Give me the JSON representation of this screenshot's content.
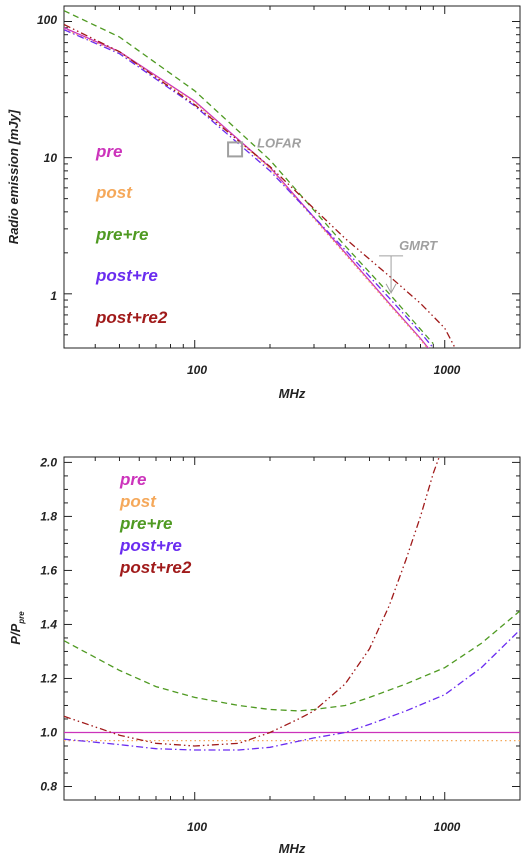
{
  "colors": {
    "pre": "#cc33bb",
    "post": "#f5a85a",
    "pre+re": "#4f9a22",
    "post+re": "#6a2cf0",
    "post+re2": "#a01a1a",
    "observation": "#a0a0a0",
    "axis": "#222222"
  },
  "chart_data": [
    {
      "type": "line",
      "xlabel": "MHz",
      "ylabel": "Radio emission [mJy]",
      "xscale": "log",
      "yscale": "log",
      "xlim": [
        30,
        2000
      ],
      "ylim": [
        0.4,
        130
      ],
      "x_tick_labels": [
        "100",
        "1000"
      ],
      "y_tick_labels": [
        "1",
        "10",
        "100"
      ],
      "legend": [
        "pre",
        "post",
        "pre+re",
        "post+re",
        "post+re2"
      ],
      "legend_position": "left",
      "series": [
        {
          "name": "pre",
          "style": "solid",
          "x": [
            30,
            50,
            100,
            200,
            400,
            600,
            800,
            900
          ],
          "y": [
            90,
            60,
            26,
            8.5,
            2.0,
            0.85,
            0.47,
            0.36
          ]
        },
        {
          "name": "post",
          "style": "dotted",
          "x": [
            30,
            50,
            100,
            200,
            400,
            600,
            800,
            900
          ],
          "y": [
            88,
            59,
            25.5,
            8.3,
            1.95,
            0.83,
            0.46,
            0.35
          ]
        },
        {
          "name": "pre+re",
          "style": "dashed",
          "x": [
            30,
            50,
            100,
            200,
            400,
            600,
            800,
            900
          ],
          "y": [
            120,
            77,
            31,
            9.6,
            2.25,
            1.0,
            0.55,
            0.43
          ]
        },
        {
          "name": "post+re",
          "style": "dash-dot",
          "x": [
            30,
            50,
            100,
            200,
            400,
            600,
            800,
            900
          ],
          "y": [
            87,
            58,
            24,
            8.0,
            2.1,
            0.93,
            0.52,
            0.4
          ]
        },
        {
          "name": "post+re2",
          "style": "dash-dot-dot",
          "x": [
            30,
            50,
            100,
            200,
            400,
            600,
            800,
            1000,
            1100
          ],
          "y": [
            95,
            60,
            24.5,
            8.6,
            2.55,
            1.35,
            0.85,
            0.56,
            0.4
          ]
        }
      ],
      "annotations": [
        {
          "label": "LOFAR",
          "type": "data-point",
          "x": 145,
          "y": 11.5
        },
        {
          "label": "GMRT",
          "type": "upper-limit",
          "x": 610,
          "y": 1.9
        }
      ]
    },
    {
      "type": "line",
      "xlabel": "MHz",
      "ylabel": "P/P",
      "ylabel_sub": "pre",
      "xscale": "log",
      "yscale": "linear",
      "xlim": [
        30,
        2000
      ],
      "ylim": [
        0.75,
        2.02
      ],
      "x_tick_labels": [
        "100",
        "1000"
      ],
      "y_tick_labels": [
        "0.8",
        "1.0",
        "1.2",
        "1.4",
        "1.6",
        "1.8",
        "2.0"
      ],
      "y_ticks": [
        0.8,
        1.0,
        1.2,
        1.4,
        1.6,
        1.8,
        2.0
      ],
      "legend": [
        "pre",
        "post",
        "pre+re",
        "post+re",
        "post+re2"
      ],
      "legend_position": "top-left",
      "series": [
        {
          "name": "pre",
          "style": "solid",
          "x": [
            30,
            2000
          ],
          "y": [
            1.0,
            1.0
          ]
        },
        {
          "name": "post",
          "style": "dotted",
          "x": [
            30,
            2000
          ],
          "y": [
            0.97,
            0.97
          ]
        },
        {
          "name": "pre+re",
          "style": "dashed",
          "x": [
            30,
            50,
            70,
            100,
            150,
            200,
            260,
            300,
            400,
            500,
            700,
            1000,
            1400,
            2000
          ],
          "y": [
            1.34,
            1.23,
            1.17,
            1.13,
            1.1,
            1.085,
            1.08,
            1.085,
            1.1,
            1.13,
            1.18,
            1.24,
            1.33,
            1.45
          ]
        },
        {
          "name": "post+re",
          "style": "dash-dot",
          "x": [
            30,
            50,
            70,
            100,
            150,
            200,
            300,
            400,
            500,
            700,
            1000,
            1400,
            2000
          ],
          "y": [
            0.975,
            0.955,
            0.94,
            0.935,
            0.935,
            0.945,
            0.98,
            1.0,
            1.03,
            1.08,
            1.14,
            1.24,
            1.38
          ]
        },
        {
          "name": "post+re2",
          "style": "dash-dot-dot",
          "x": [
            30,
            50,
            70,
            100,
            150,
            200,
            260,
            300,
            400,
            500,
            600,
            700,
            800,
            900,
            950
          ],
          "y": [
            1.06,
            0.99,
            0.96,
            0.95,
            0.96,
            1.0,
            1.05,
            1.08,
            1.18,
            1.31,
            1.47,
            1.64,
            1.8,
            1.96,
            2.02
          ]
        }
      ]
    }
  ]
}
